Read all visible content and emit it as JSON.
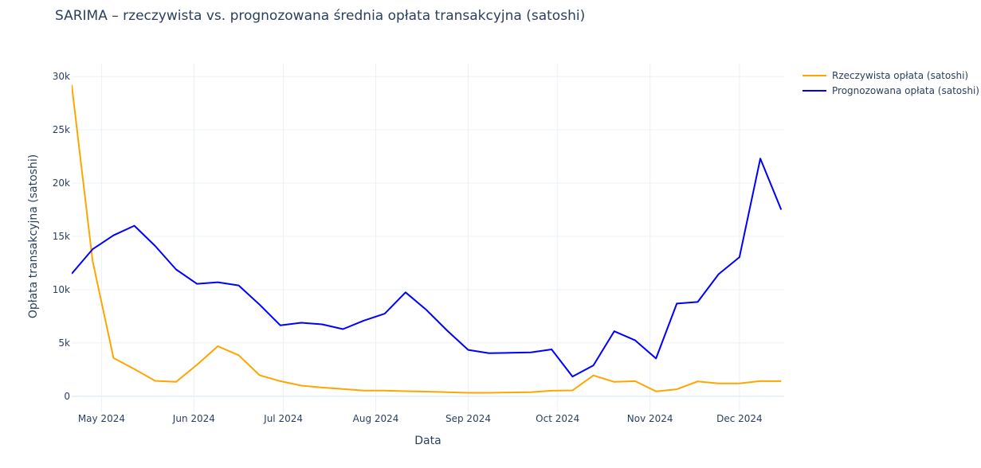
{
  "title": "SARIMA – rzeczywista vs. prognozowana średnia opłata transakcyjna (satoshi)",
  "chart_data": {
    "type": "line",
    "title": "SARIMA – rzeczywista vs. prognozowana średnia opłata transakcyjna (satoshi)",
    "xlabel": "Data",
    "ylabel": "Opłata transakcyjna (satoshi)",
    "x_tick_labels": [
      "May 2024",
      "Jun 2024",
      "Jul 2024",
      "Aug 2024",
      "Sep 2024",
      "Oct 2024",
      "Nov 2024",
      "Dec 2024"
    ],
    "x_ticks": [
      "2024-05-01",
      "2024-06-01",
      "2024-07-01",
      "2024-08-01",
      "2024-09-01",
      "2024-10-01",
      "2024-11-01",
      "2024-12-01"
    ],
    "y_tick_labels": [
      "0",
      "5k",
      "10k",
      "15k",
      "20k",
      "25k",
      "30k"
    ],
    "y_ticks": [
      0,
      5000,
      10000,
      15000,
      20000,
      25000,
      30000
    ],
    "xlim": [
      "2024-04-21",
      "2024-12-16"
    ],
    "ylim": [
      -1500,
      31200
    ],
    "grid": true,
    "legend_position": "top-right",
    "x": [
      "2024-04-21",
      "2024-04-28",
      "2024-05-05",
      "2024-05-12",
      "2024-05-19",
      "2024-05-26",
      "2024-06-02",
      "2024-06-09",
      "2024-06-16",
      "2024-06-23",
      "2024-06-30",
      "2024-07-07",
      "2024-07-14",
      "2024-07-21",
      "2024-07-28",
      "2024-08-04",
      "2024-08-11",
      "2024-08-18",
      "2024-08-25",
      "2024-09-01",
      "2024-09-08",
      "2024-09-15",
      "2024-09-22",
      "2024-09-29",
      "2024-10-06",
      "2024-10-13",
      "2024-10-20",
      "2024-10-27",
      "2024-11-03",
      "2024-11-10",
      "2024-11-17",
      "2024-11-24",
      "2024-12-01",
      "2024-12-08",
      "2024-12-15"
    ],
    "series": [
      {
        "name": "Rzeczywista opłata (satoshi)",
        "color": "#FFA500",
        "values": [
          29200,
          12700,
          3600,
          2550,
          1450,
          1350,
          2950,
          4700,
          3850,
          1980,
          1420,
          1000,
          820,
          680,
          530,
          530,
          480,
          440,
          380,
          330,
          330,
          360,
          390,
          520,
          550,
          1960,
          1350,
          1420,
          460,
          660,
          1400,
          1200,
          1200,
          1430,
          1420
        ]
      },
      {
        "name": "Prognozowana opłata (satoshi)",
        "color": "#0000FF",
        "values": [
          11500,
          13800,
          15100,
          16000,
          14100,
          11900,
          10550,
          10700,
          10400,
          8600,
          6650,
          6900,
          6750,
          6300,
          7100,
          7750,
          9750,
          8100,
          6150,
          4350,
          4050,
          4080,
          4120,
          4400,
          1850,
          2900,
          6100,
          5250,
          3550,
          8700,
          8850,
          11450,
          13050,
          22300,
          17500
        ]
      }
    ]
  }
}
